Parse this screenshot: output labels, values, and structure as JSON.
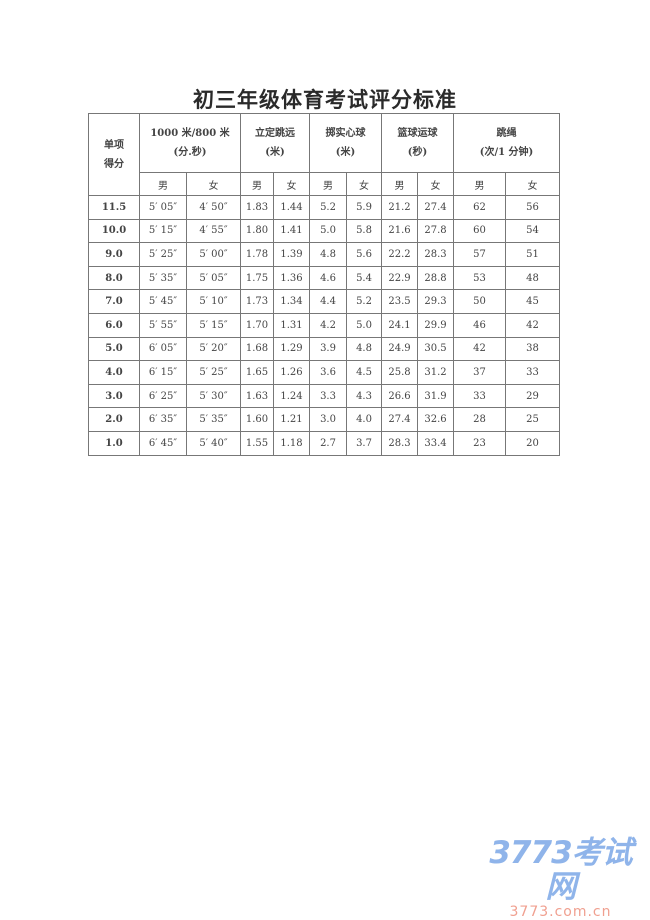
{
  "title": "初三年级体育考试评分标准",
  "table": {
    "score_header": [
      "单项",
      "得分"
    ],
    "groups": [
      {
        "name": "1000 米/800 米",
        "unit": "(分.秒)"
      },
      {
        "name": "立定跳远",
        "unit": "(米)"
      },
      {
        "name": "掷实心球",
        "unit": "(米)"
      },
      {
        "name": "篮球运球",
        "unit": "(秒)"
      },
      {
        "name": "跳绳",
        "unit": "(次/1 分钟)"
      }
    ],
    "gender": {
      "male": "男",
      "female": "女"
    },
    "rows": [
      [
        "11.5",
        "5′ 05″",
        "4′ 50″",
        "1.83",
        "1.44",
        "5.2",
        "5.9",
        "21.2",
        "27.4",
        "62",
        "56"
      ],
      [
        "10.0",
        "5′ 15″",
        "4′ 55″",
        "1.80",
        "1.41",
        "5.0",
        "5.8",
        "21.6",
        "27.8",
        "60",
        "54"
      ],
      [
        "9.0",
        "5′ 25″",
        "5′ 00″",
        "1.78",
        "1.39",
        "4.8",
        "5.6",
        "22.2",
        "28.3",
        "57",
        "51"
      ],
      [
        "8.0",
        "5′ 35″",
        "5′ 05″",
        "1.75",
        "1.36",
        "4.6",
        "5.4",
        "22.9",
        "28.8",
        "53",
        "48"
      ],
      [
        "7.0",
        "5′ 45″",
        "5′ 10″",
        "1.73",
        "1.34",
        "4.4",
        "5.2",
        "23.5",
        "29.3",
        "50",
        "45"
      ],
      [
        "6.0",
        "5′ 55″",
        "5′ 15″",
        "1.70",
        "1.31",
        "4.2",
        "5.0",
        "24.1",
        "29.9",
        "46",
        "42"
      ],
      [
        "5.0",
        "6′ 05″",
        "5′ 20″",
        "1.68",
        "1.29",
        "3.9",
        "4.8",
        "24.9",
        "30.5",
        "42",
        "38"
      ],
      [
        "4.0",
        "6′ 15″",
        "5′ 25″",
        "1.65",
        "1.26",
        "3.6",
        "4.5",
        "25.8",
        "31.2",
        "37",
        "33"
      ],
      [
        "3.0",
        "6′ 25″",
        "5′ 30″",
        "1.63",
        "1.24",
        "3.3",
        "4.3",
        "26.6",
        "31.9",
        "33",
        "29"
      ],
      [
        "2.0",
        "6′ 35″",
        "5′ 35″",
        "1.60",
        "1.21",
        "3.0",
        "4.0",
        "27.4",
        "32.6",
        "28",
        "25"
      ],
      [
        "1.0",
        "6′ 45″",
        "5′ 40″",
        "1.55",
        "1.18",
        "2.7",
        "3.7",
        "28.3",
        "33.4",
        "23",
        "20"
      ]
    ]
  },
  "watermark": {
    "logo": "3773考试网",
    "url": "3773.com.cn",
    "colors": {
      "logo": "#8fb4ea",
      "url": "#f0a090"
    }
  }
}
